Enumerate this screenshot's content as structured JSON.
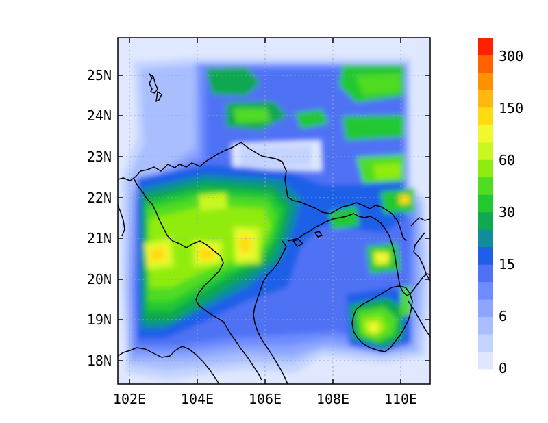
{
  "map": {
    "lat_labels": [
      "25N",
      "24N",
      "23N",
      "22N",
      "21N",
      "20N",
      "19N",
      "18N"
    ],
    "lon_labels": [
      "102E",
      "104E",
      "106E",
      "108E",
      "110E"
    ]
  },
  "colorbar": {
    "labels": [
      "300",
      "150",
      "60",
      "30",
      "15",
      "6",
      "0"
    ],
    "colors": [
      "#e0e8ff",
      "#c4d4ff",
      "#a8beff",
      "#8ca6ff",
      "#6e8cff",
      "#4f72f5",
      "#1e5ee8",
      "#118c9c",
      "#10a850",
      "#22c830",
      "#4fdc22",
      "#90ec10",
      "#c8f820",
      "#f0f830",
      "#ffdc10",
      "#ffb810",
      "#ff9000",
      "#ff6000",
      "#ff2000"
    ]
  },
  "colors": {
    "background_field": "#e0e8ff",
    "coastline": "#000000",
    "gridline": "#9aa4b8"
  }
}
